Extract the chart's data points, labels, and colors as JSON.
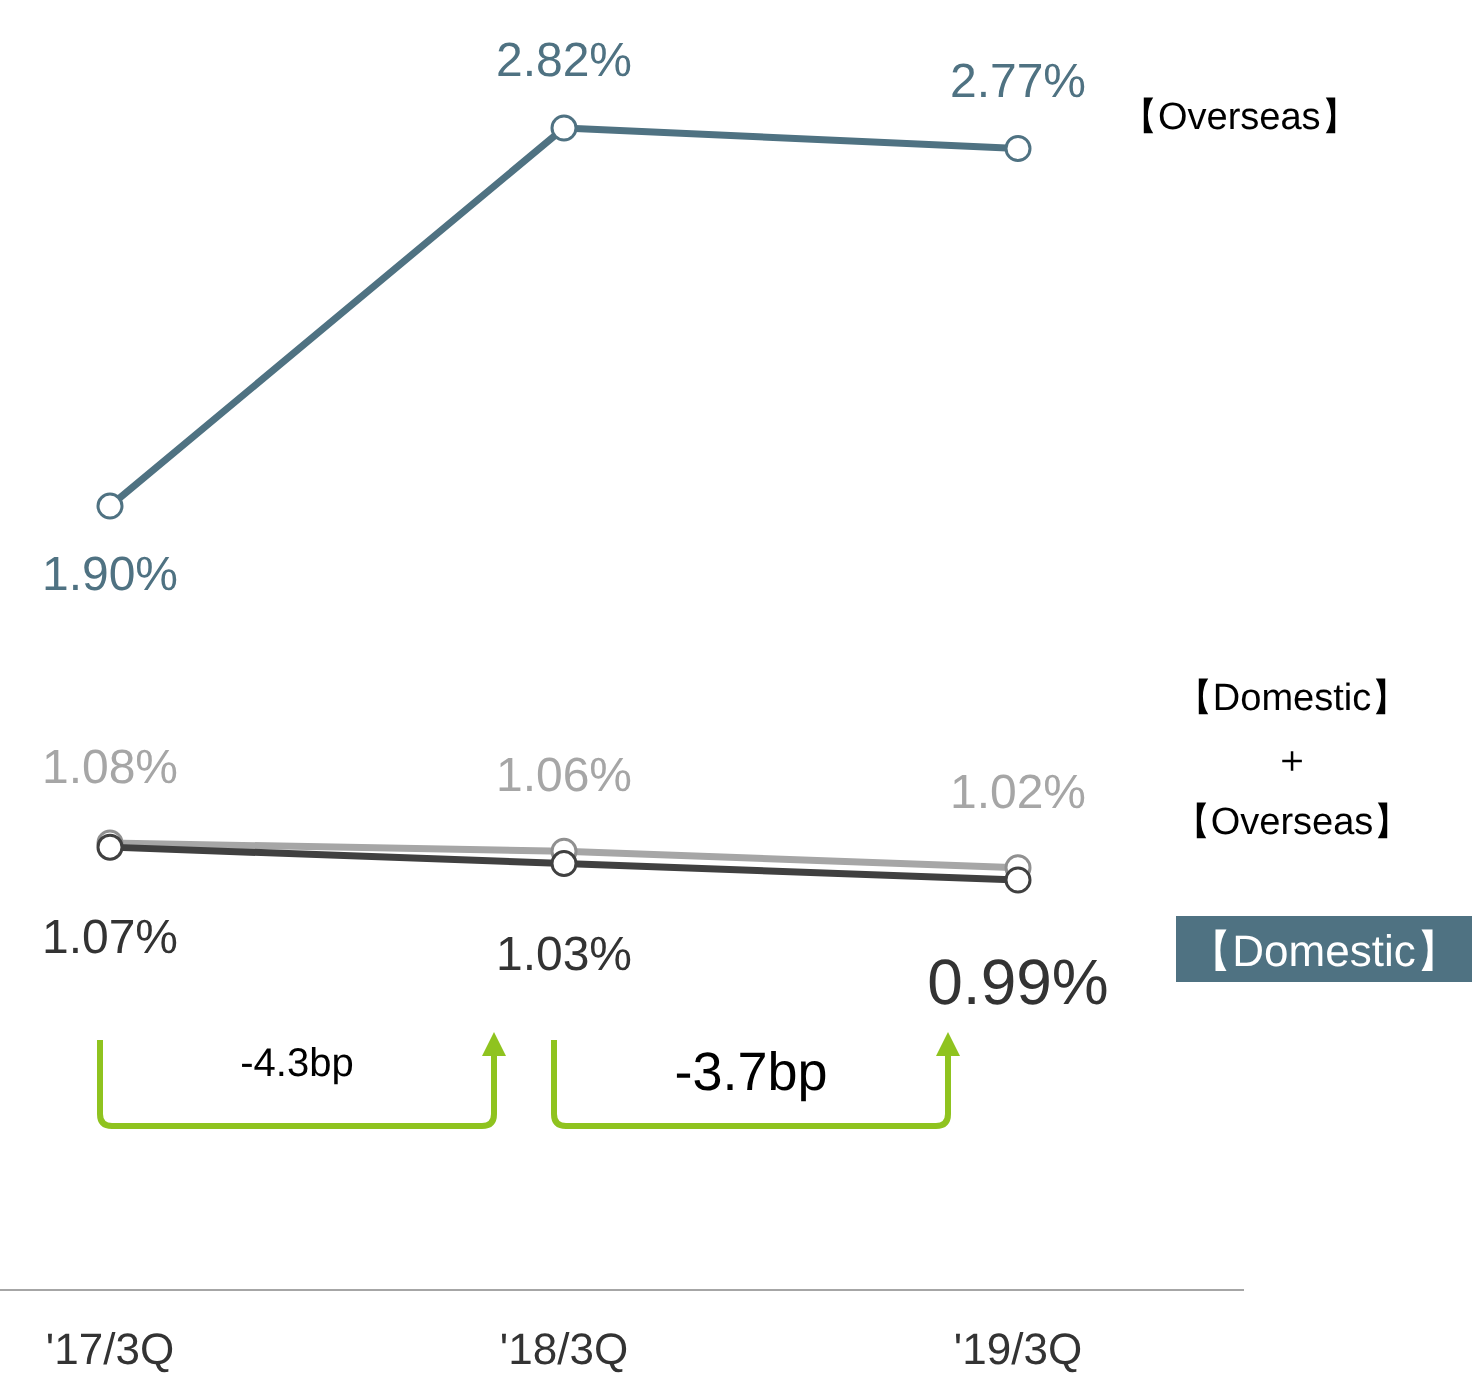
{
  "chart_data": {
    "type": "line",
    "categories": [
      "'17/3Q",
      "'18/3Q",
      "'19/3Q"
    ],
    "marker": "circle",
    "data_labels": true,
    "series": [
      {
        "name": "【Overseas】",
        "color": "#4f7282",
        "values": [
          1.9,
          2.82,
          2.77
        ],
        "value_labels": [
          "1.90%",
          "2.82%",
          "2.77%"
        ]
      },
      {
        "name": "【Domestic】＋【Overseas】",
        "color": "#a6a6a6",
        "values": [
          1.08,
          1.06,
          1.02
        ],
        "value_labels": [
          "1.08%",
          "1.06%",
          "1.02%"
        ]
      },
      {
        "name": "【Domestic】",
        "color": "#404040",
        "values": [
          1.07,
          1.03,
          0.99
        ],
        "value_labels": [
          "1.07%",
          "1.03%",
          "0.99%"
        ]
      }
    ],
    "annotations": [
      "-4.3bp",
      "-3.7bp"
    ]
  }
}
